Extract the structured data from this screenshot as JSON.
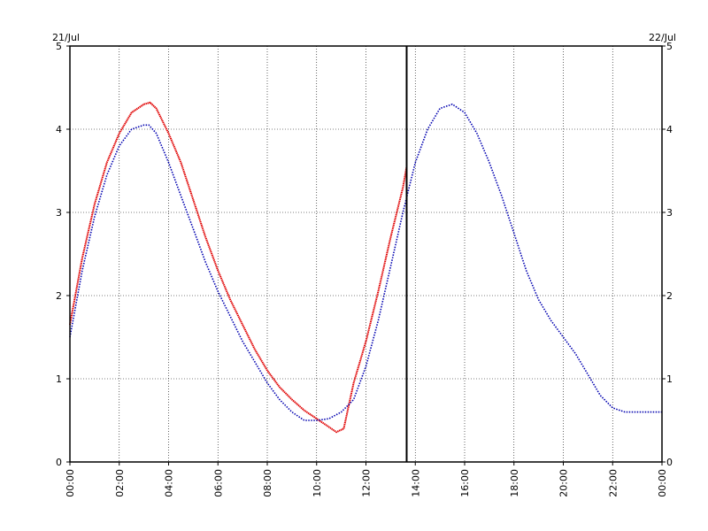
{
  "chart_data": {
    "type": "line",
    "date_left": "21/Jul",
    "date_right": "22/Jul",
    "x_unit": "hours since 21/Jul 00:00",
    "xlim": [
      0,
      24
    ],
    "ylim": [
      0,
      5
    ],
    "yticks": [
      "0",
      "1",
      "2",
      "3",
      "4",
      "5"
    ],
    "xticks": [
      "00:00",
      "02:00",
      "04:00",
      "06:00",
      "08:00",
      "10:00",
      "12:00",
      "14:00",
      "16:00",
      "18:00",
      "20:00",
      "22:00",
      "00:00"
    ],
    "grid": true,
    "now_marker_x": 13.65,
    "series": [
      {
        "color": "#e00000",
        "x": [
          0,
          0.5,
          1,
          1.5,
          2,
          2.5,
          3,
          3.25,
          3.5,
          4,
          4.5,
          5,
          5.5,
          6,
          6.5,
          7,
          7.5,
          8,
          8.5,
          9,
          9.5,
          10,
          10.5,
          10.8,
          11.1,
          11.5,
          12,
          12.5,
          13,
          13.5,
          13.65
        ],
        "y": [
          1.65,
          2.45,
          3.1,
          3.6,
          3.95,
          4.2,
          4.3,
          4.32,
          4.25,
          3.95,
          3.6,
          3.15,
          2.7,
          2.3,
          1.95,
          1.65,
          1.35,
          1.1,
          0.9,
          0.75,
          0.62,
          0.52,
          0.42,
          0.36,
          0.4,
          0.95,
          1.45,
          2.05,
          2.7,
          3.3,
          3.55
        ]
      },
      {
        "color": "#0000b0",
        "x": [
          0,
          0.5,
          1,
          1.5,
          2,
          2.5,
          3,
          3.2,
          3.5,
          4,
          4.5,
          5,
          5.5,
          6,
          6.5,
          7,
          7.5,
          8,
          8.5,
          9,
          9.5,
          10,
          10.5,
          11,
          11.5,
          12,
          12.5,
          13,
          13.5,
          14,
          14.5,
          15,
          15.5,
          16,
          16.5,
          17,
          17.5,
          18,
          18.5,
          19,
          19.5,
          20,
          20.5,
          21,
          21.5,
          22,
          22.5,
          23,
          23.5,
          24
        ],
        "y": [
          1.5,
          2.3,
          2.95,
          3.45,
          3.8,
          4.0,
          4.05,
          4.05,
          3.95,
          3.6,
          3.2,
          2.8,
          2.4,
          2.05,
          1.75,
          1.45,
          1.2,
          0.95,
          0.75,
          0.6,
          0.5,
          0.5,
          0.52,
          0.6,
          0.75,
          1.15,
          1.7,
          2.35,
          3.0,
          3.6,
          4.0,
          4.25,
          4.3,
          4.2,
          3.95,
          3.6,
          3.2,
          2.75,
          2.3,
          1.95,
          1.7,
          1.5,
          1.3,
          1.05,
          0.8,
          0.65,
          0.6,
          0.6,
          0.6,
          0.6
        ]
      }
    ]
  }
}
